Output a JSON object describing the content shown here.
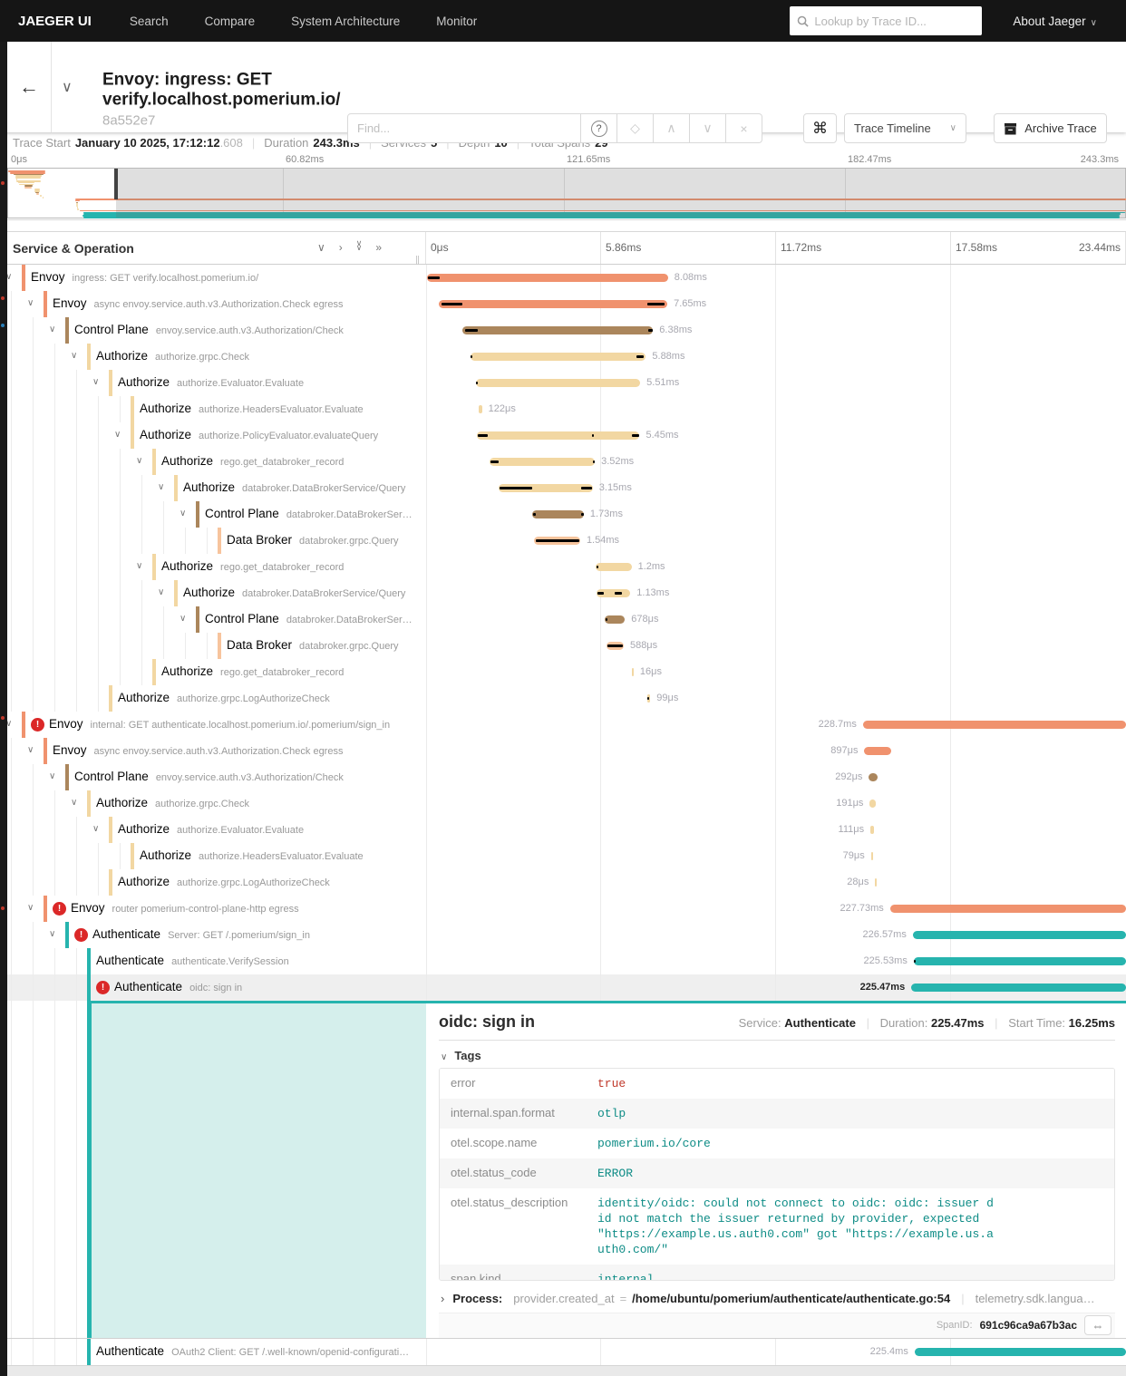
{
  "nav": {
    "brand": "JAEGER UI",
    "items": [
      "Search",
      "Compare",
      "System Architecture",
      "Monitor"
    ],
    "search_placeholder": "Lookup by Trace ID...",
    "about": "About Jaeger"
  },
  "header": {
    "title": "Envoy: ingress: GET verify.localhost.pomerium.io/ ",
    "trace_id_short": "8a552e7",
    "find_placeholder": "Find...",
    "view_select": "Trace Timeline",
    "archive_label": "Archive Trace"
  },
  "summary": {
    "trace_start_label": "Trace Start",
    "trace_start": "January 10 2025, 17:12:12",
    "trace_start_ms": ".608",
    "duration_label": "Duration",
    "duration": "243.3ms",
    "services_label": "Services",
    "services": "5",
    "depth_label": "Depth",
    "depth": "10",
    "total_spans_label": "Total Spans",
    "total_spans": "29"
  },
  "icons": {
    "back": "←",
    "chevron_down": "∨",
    "chevron_up": "∧",
    "chevron_right": "›",
    "double_chevron_right": "»",
    "help": "?",
    "target": "◇",
    "clear": "×",
    "command": "⌘",
    "link": "⇔",
    "error": "!"
  },
  "colors": {
    "envoy": "#F0926E",
    "controlplane": "#AB865C",
    "authorize": "#F2D7A2",
    "databroker": "#F7C49D",
    "authenticate": "#26B4AE",
    "error": "#DB2828",
    "selection_teal": "#D5EFEC",
    "accent_teal": "#26B4AE"
  },
  "minimap": {
    "ruler": [
      "0μs",
      "60.82ms",
      "121.65ms",
      "182.47ms",
      "243.3ms"
    ],
    "total_ms": 243.3,
    "viewport_end_ms": 23.44
  },
  "timeline": {
    "left_header": "Service & Operation",
    "ticks": [
      "0μs",
      "5.86ms",
      "11.72ms",
      "17.58ms",
      "23.44ms"
    ],
    "tick_ms": [
      0,
      5.86,
      11.72,
      17.58,
      23.44
    ],
    "spans": [
      {
        "service": "Envoy",
        "operation": "ingress: GET verify.localhost.pomerium.io/",
        "color": "envoy",
        "level": 0,
        "has_children": true,
        "error": false,
        "start_ms": 0.02,
        "duration_ms": 8.08,
        "duration_label": "8.08ms",
        "label_side": "right",
        "marks": [
          [
            0.06,
            0.46
          ]
        ]
      },
      {
        "service": "Envoy",
        "operation": "async envoy.service.auth.v3.Authorization.Check egress",
        "color": "envoy",
        "level": 1,
        "has_children": true,
        "error": false,
        "start_ms": 0.43,
        "duration_ms": 7.65,
        "duration_label": "7.65ms",
        "label_side": "right",
        "marks": [
          [
            0.52,
            1.22
          ],
          [
            7.42,
            7.98
          ]
        ]
      },
      {
        "service": "Control Plane",
        "operation": "envoy.service.auth.v3.Authorization/Check",
        "color": "controlplane",
        "level": 2,
        "has_children": true,
        "error": false,
        "start_ms": 1.22,
        "duration_ms": 6.38,
        "duration_label": "6.38ms",
        "label_side": "right",
        "marks": [
          [
            1.3,
            1.72
          ],
          [
            7.45,
            7.58
          ]
        ]
      },
      {
        "service": "Authorize",
        "operation": "authorize.grpc.Check",
        "color": "authorize",
        "level": 3,
        "has_children": true,
        "error": false,
        "start_ms": 1.48,
        "duration_ms": 5.88,
        "duration_label": "5.88ms",
        "label_side": "right",
        "marks": [
          [
            1.5,
            1.56
          ],
          [
            7.05,
            7.3
          ]
        ]
      },
      {
        "service": "Authorize",
        "operation": "authorize.Evaluator.Evaluate",
        "color": "authorize",
        "level": 4,
        "has_children": true,
        "error": false,
        "start_ms": 1.66,
        "duration_ms": 5.51,
        "duration_label": "5.51ms",
        "label_side": "right",
        "marks": [
          [
            1.68,
            1.74
          ]
        ]
      },
      {
        "service": "Authorize",
        "operation": "authorize.HeadersEvaluator.Evaluate",
        "color": "authorize",
        "level": 5,
        "has_children": false,
        "error": false,
        "start_ms": 1.75,
        "duration_ms": 0.122,
        "duration_label": "122μs",
        "label_side": "right",
        "marks": []
      },
      {
        "service": "Authorize",
        "operation": "authorize.PolicyEvaluator.evaluateQuery",
        "color": "authorize",
        "level": 5,
        "has_children": true,
        "error": false,
        "start_ms": 1.7,
        "duration_ms": 5.45,
        "duration_label": "5.45ms",
        "label_side": "right",
        "marks": [
          [
            1.72,
            2.06
          ],
          [
            5.55,
            5.62
          ],
          [
            6.9,
            7.14
          ]
        ]
      },
      {
        "service": "Authorize",
        "operation": "rego.get_databroker_record",
        "color": "authorize",
        "level": 6,
        "has_children": true,
        "error": false,
        "start_ms": 2.13,
        "duration_ms": 3.52,
        "duration_label": "3.52ms",
        "label_side": "right",
        "marks": [
          [
            2.16,
            2.44
          ],
          [
            5.58,
            5.64
          ]
        ]
      },
      {
        "service": "Authorize",
        "operation": "databroker.DataBrokerService/Query",
        "color": "authorize",
        "level": 7,
        "has_children": true,
        "error": false,
        "start_ms": 2.43,
        "duration_ms": 3.15,
        "duration_label": "3.15ms",
        "label_side": "right",
        "marks": [
          [
            2.46,
            3.56
          ],
          [
            5.2,
            5.55
          ]
        ]
      },
      {
        "service": "Control Plane",
        "operation": "databroker.DataBrokerSer…",
        "color": "controlplane",
        "level": 8,
        "has_children": true,
        "error": false,
        "start_ms": 3.55,
        "duration_ms": 1.73,
        "duration_label": "1.73ms",
        "label_side": "right",
        "marks": [
          [
            3.57,
            3.66
          ],
          [
            5.18,
            5.27
          ]
        ]
      },
      {
        "service": "Data Broker",
        "operation": "databroker.grpc.Query",
        "color": "databroker",
        "level": 9,
        "has_children": false,
        "error": false,
        "start_ms": 3.62,
        "duration_ms": 1.54,
        "duration_label": "1.54ms",
        "label_side": "right",
        "marks": [
          [
            3.67,
            5.12
          ]
        ]
      },
      {
        "service": "Authorize",
        "operation": "rego.get_databroker_record",
        "color": "authorize",
        "level": 6,
        "has_children": true,
        "error": false,
        "start_ms": 5.68,
        "duration_ms": 1.2,
        "duration_label": "1.2ms",
        "label_side": "right",
        "marks": [
          [
            5.7,
            5.76
          ]
        ]
      },
      {
        "service": "Authorize",
        "operation": "databroker.DataBrokerService/Query",
        "color": "authorize",
        "level": 7,
        "has_children": true,
        "error": false,
        "start_ms": 5.71,
        "duration_ms": 1.13,
        "duration_label": "1.13ms",
        "label_side": "right",
        "marks": [
          [
            5.73,
            5.95
          ],
          [
            6.32,
            6.56
          ]
        ]
      },
      {
        "service": "Control Plane",
        "operation": "databroker.DataBrokerSer…",
        "color": "controlplane",
        "level": 8,
        "has_children": true,
        "error": false,
        "start_ms": 5.98,
        "duration_ms": 0.678,
        "duration_label": "678μs",
        "label_side": "right",
        "marks": [
          [
            6.0,
            6.06
          ]
        ]
      },
      {
        "service": "Data Broker",
        "operation": "databroker.grpc.Query",
        "color": "databroker",
        "level": 9,
        "has_children": false,
        "error": false,
        "start_ms": 6.03,
        "duration_ms": 0.588,
        "duration_label": "588μs",
        "label_side": "right",
        "marks": [
          [
            6.06,
            6.58
          ]
        ]
      },
      {
        "service": "Authorize",
        "operation": "rego.get_databroker_record",
        "color": "authorize",
        "level": 6,
        "has_children": false,
        "error": false,
        "start_ms": 6.89,
        "duration_ms": 0.016,
        "duration_label": "16μs",
        "label_side": "right",
        "marks": []
      },
      {
        "service": "Authorize",
        "operation": "authorize.grpc.LogAuthorizeCheck",
        "color": "authorize",
        "level": 4,
        "has_children": false,
        "error": false,
        "start_ms": 7.41,
        "duration_ms": 0.099,
        "duration_label": "99μs",
        "label_side": "right",
        "marks": [
          [
            7.42,
            7.46
          ]
        ]
      },
      {
        "service": "Envoy",
        "operation": "internal: GET authenticate.localhost.pomerium.io/.pomerium/sign_in",
        "color": "envoy",
        "level": 0,
        "has_children": true,
        "error": true,
        "start_ms": 14.63,
        "duration_ms": 228.7,
        "duration_label": "228.7ms",
        "label_side": "left",
        "marks": []
      },
      {
        "service": "Envoy",
        "operation": "async envoy.service.auth.v3.Authorization.Check egress",
        "color": "envoy",
        "level": 1,
        "has_children": true,
        "error": false,
        "start_ms": 14.68,
        "duration_ms": 0.897,
        "duration_label": "897μs",
        "label_side": "left",
        "marks": []
      },
      {
        "service": "Control Plane",
        "operation": "envoy.service.auth.v3.Authorization/Check",
        "color": "controlplane",
        "level": 2,
        "has_children": true,
        "error": false,
        "start_ms": 14.83,
        "duration_ms": 0.292,
        "duration_label": "292μs",
        "label_side": "left",
        "marks": []
      },
      {
        "service": "Authorize",
        "operation": "authorize.grpc.Check",
        "color": "authorize",
        "level": 3,
        "has_children": true,
        "error": false,
        "start_ms": 14.86,
        "duration_ms": 0.191,
        "duration_label": "191μs",
        "label_side": "left",
        "marks": []
      },
      {
        "service": "Authorize",
        "operation": "authorize.Evaluator.Evaluate",
        "color": "authorize",
        "level": 4,
        "has_children": true,
        "error": false,
        "start_ms": 14.88,
        "duration_ms": 0.111,
        "duration_label": "111μs",
        "label_side": "left",
        "marks": []
      },
      {
        "service": "Authorize",
        "operation": "authorize.HeadersEvaluator.Evaluate",
        "color": "authorize",
        "level": 5,
        "has_children": false,
        "error": false,
        "start_ms": 14.9,
        "duration_ms": 0.079,
        "duration_label": "79μs",
        "label_side": "left",
        "marks": []
      },
      {
        "service": "Authorize",
        "operation": "authorize.grpc.LogAuthorizeCheck",
        "color": "authorize",
        "level": 4,
        "has_children": false,
        "error": false,
        "start_ms": 15.04,
        "duration_ms": 0.028,
        "duration_label": "28μs",
        "label_side": "left",
        "marks": []
      },
      {
        "service": "Envoy",
        "operation": "router pomerium-control-plane-http egress",
        "color": "envoy",
        "level": 1,
        "has_children": true,
        "error": true,
        "start_ms": 15.54,
        "duration_ms": 227.73,
        "duration_label": "227.73ms",
        "label_side": "left",
        "marks": []
      },
      {
        "service": "Authenticate",
        "operation": "Server: GET /.pomerium/sign_in",
        "color": "authenticate",
        "level": 2,
        "has_children": true,
        "error": true,
        "start_ms": 16.3,
        "duration_ms": 226.57,
        "duration_label": "226.57ms",
        "label_side": "left",
        "marks": []
      },
      {
        "service": "Authenticate",
        "operation": "authenticate.VerifySession",
        "color": "authenticate",
        "level": 3,
        "has_children": false,
        "error": false,
        "start_ms": 16.33,
        "duration_ms": 225.53,
        "duration_label": "225.53ms",
        "label_side": "left",
        "marks": [
          [
            16.33,
            16.37
          ]
        ]
      },
      {
        "service": "Authenticate",
        "operation": "oidc: sign in",
        "color": "authenticate",
        "level": 3,
        "has_children": false,
        "error": true,
        "start_ms": 16.25,
        "duration_ms": 225.47,
        "duration_label": "225.47ms",
        "label_side": "left",
        "selected": true,
        "marks": []
      },
      {
        "service": "Authenticate",
        "operation": "OAuth2 Client: GET /.well-known/openid-configurati…",
        "color": "authenticate",
        "level": 3,
        "has_children": false,
        "error": false,
        "start_ms": 16.36,
        "duration_ms": 225.4,
        "duration_label": "225.4ms",
        "label_side": "left",
        "after_detail": true,
        "marks": []
      }
    ]
  },
  "detail": {
    "title": "oidc: sign in",
    "service_label": "Service:",
    "service": "Authenticate",
    "duration_label": "Duration:",
    "duration": "225.47ms",
    "start_label": "Start Time:",
    "start": "16.25ms",
    "tags_header": "Tags",
    "tags": [
      {
        "key": "error",
        "value": "true",
        "red": true
      },
      {
        "key": "internal.span.format",
        "value": "otlp"
      },
      {
        "key": "otel.scope.name",
        "value": "pomerium.io/core"
      },
      {
        "key": "otel.status_code",
        "value": "ERROR"
      },
      {
        "key": "otel.status_description",
        "value": "identity/oidc: could not connect to oidc: oidc: issuer did not match the issuer returned by provider, expected \"https://example.us.auth0.com\" got \"https://example.us.auth0.com/\""
      },
      {
        "key": "span.kind",
        "value": "internal"
      }
    ],
    "process_label": "Process:",
    "process_key": "provider.created_at",
    "process_eq": "=",
    "process_value": "/home/ubuntu/pomerium/authenticate/authenticate.go:54",
    "process_extra": "telemetry.sdk.langua…",
    "spanid_label": "SpanID:",
    "spanid": "691c96ca9a67b3ac"
  }
}
